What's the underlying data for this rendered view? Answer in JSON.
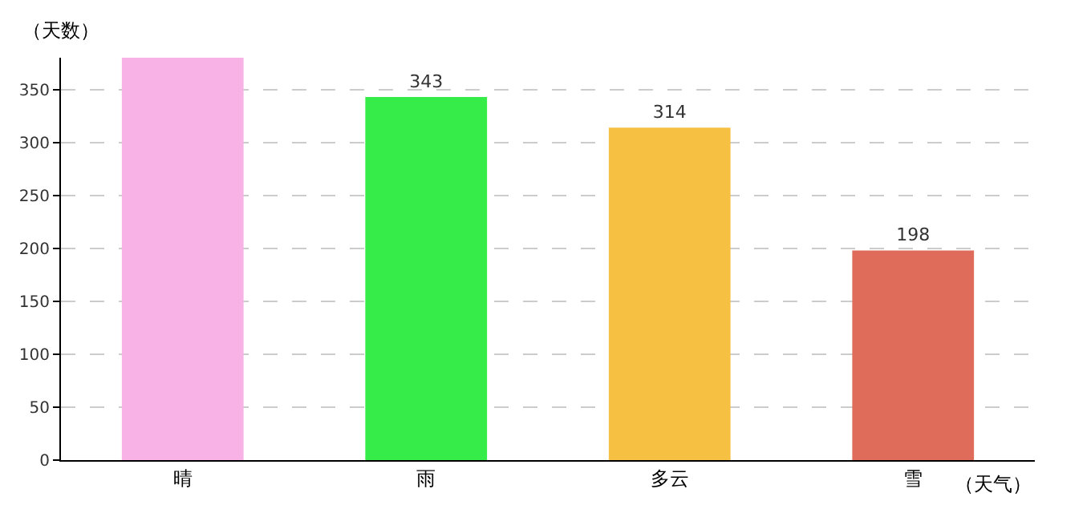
{
  "chart_data": {
    "type": "bar",
    "xlabel": "（天气）",
    "ylabel": "（天数）",
    "categories": [
      "晴",
      "雨",
      "多云",
      "雪"
    ],
    "values": [
      380,
      343,
      314,
      198
    ],
    "value_labels": [
      null,
      "343",
      "314",
      "198"
    ],
    "colors": [
      "#f9b2e6",
      "#35ec48",
      "#f6c042",
      "#df6c5a"
    ],
    "ylim": [
      0,
      380
    ],
    "yticks": [
      0,
      50,
      100,
      150,
      200,
      250,
      300,
      350
    ],
    "grid": "y",
    "legend": false
  }
}
